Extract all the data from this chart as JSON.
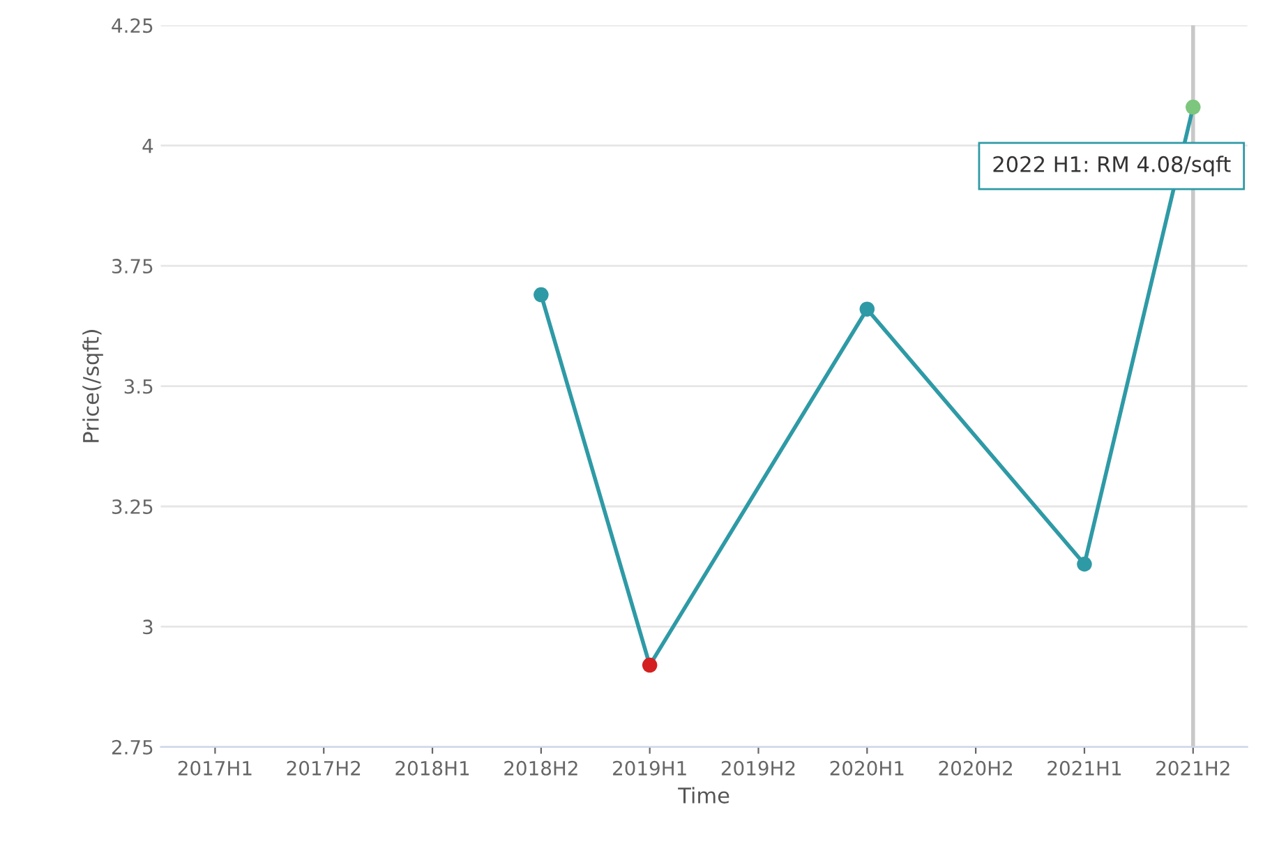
{
  "chart_data": {
    "type": "line",
    "xlabel": "Time",
    "ylabel": "Price(/sqft)",
    "categories": [
      "2017H1",
      "2017H2",
      "2018H1",
      "2018H2",
      "2019H1",
      "2019H2",
      "2020H1",
      "2020H2",
      "2021H1",
      "2021H2"
    ],
    "series": [
      {
        "color": "#2e9aa6",
        "values": [
          null,
          null,
          null,
          3.69,
          2.92,
          null,
          3.66,
          null,
          3.13,
          4.08
        ],
        "colors": [
          "#2e9aa6",
          "#2e9aa6",
          "#2e9aa6",
          "#2e9aa6",
          "#d42020",
          "#2e9aa6",
          "#2e9aa6",
          "#2e9aa6",
          "#2e9aa6",
          "#7dc67d"
        ]
      }
    ],
    "ylim": [
      2.75,
      4.25
    ],
    "yticks": [
      2.75,
      3,
      3.25,
      3.5,
      3.75,
      4,
      4.25
    ],
    "grid": "y",
    "marker": "circle",
    "line_style": "solid",
    "ref_lines": [
      {
        "axis": "x",
        "value": "2021H2",
        "color": "#c8c8c8"
      }
    ],
    "annotations": [
      "2022 H1: RM 4.08/sqft"
    ]
  }
}
